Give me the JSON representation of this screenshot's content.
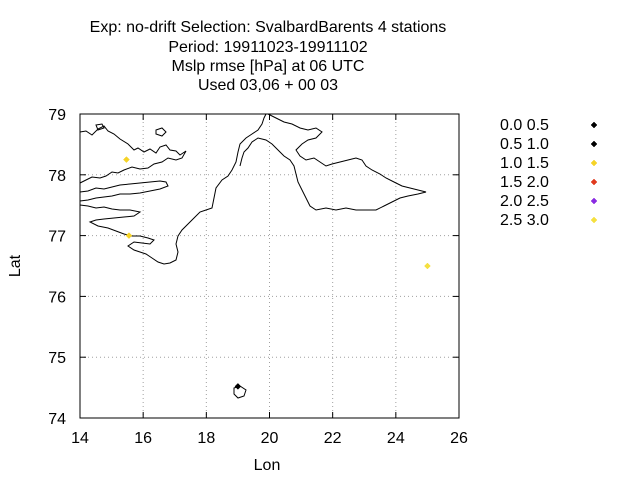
{
  "title_lines": [
    "Exp: no-drift   Selection: SvalbardBarents       4 stations",
    "Period: 19911023-19911102",
    "Mslp rmse [hPa] at  06 UTC",
    "Used  03,06  + 00 03"
  ],
  "chart_data": {
    "type": "scatter",
    "xlabel": "Lon",
    "ylabel": "Lat",
    "xlim": [
      14,
      26
    ],
    "ylim": [
      74,
      79
    ],
    "x_ticks": [
      14,
      16,
      18,
      20,
      22,
      24,
      26
    ],
    "y_ticks": [
      74,
      75,
      76,
      77,
      78,
      79
    ],
    "grid": true,
    "legend_position": "right",
    "legend": [
      {
        "label": "0.0 0.5",
        "color": "#000000"
      },
      {
        "label": "0.5 1.0",
        "color": "#000000"
      },
      {
        "label": "1.0 1.5",
        "color": "#f5d327"
      },
      {
        "label": "1.5 2.0",
        "color": "#e03a1e"
      },
      {
        "label": "2.0 2.5",
        "color": "#8a2be2"
      },
      {
        "label": "2.5 3.0",
        "color": "#f5e040"
      }
    ],
    "points": [
      {
        "lon": 19.0,
        "lat": 74.52,
        "class": 1
      },
      {
        "lon": 15.47,
        "lat": 78.25,
        "class": 2
      },
      {
        "lon": 15.55,
        "lat": 77.0,
        "class": 2
      },
      {
        "lon": 25.0,
        "lat": 76.5,
        "class": 5
      }
    ]
  }
}
